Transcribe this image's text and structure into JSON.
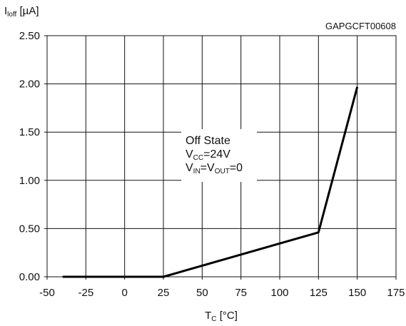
{
  "chart_data": {
    "type": "line",
    "chart_id": "GAPGCFT00608",
    "ylabel": {
      "main": "I",
      "sub": "loff",
      "unit": " [µA]"
    },
    "xlabel": {
      "main": "T",
      "sub": "C",
      "unit": " [°C]"
    },
    "xlim": [
      -50,
      175
    ],
    "ylim": [
      0,
      2.5
    ],
    "x_ticks": [
      "-50",
      "-25",
      "0",
      "25",
      "50",
      "75",
      "100",
      "125",
      "150",
      "175"
    ],
    "y_ticks": [
      "0.00",
      "0.50",
      "1.00",
      "1.50",
      "2.00",
      "2.50"
    ],
    "grid": true,
    "series": [
      {
        "x": [
          -40,
          25,
          125,
          150
        ],
        "y": [
          0,
          0,
          0.46,
          1.97
        ],
        "color": "#000000"
      }
    ],
    "annotation": {
      "line1": "Off State",
      "line2": {
        "main": "V",
        "sub": "CC",
        "rest": "=24V"
      },
      "line3": {
        "a": "V",
        "a_sub": "IN",
        "eq": "=V",
        "b_sub": "OUT",
        "rest": "=0"
      }
    }
  }
}
